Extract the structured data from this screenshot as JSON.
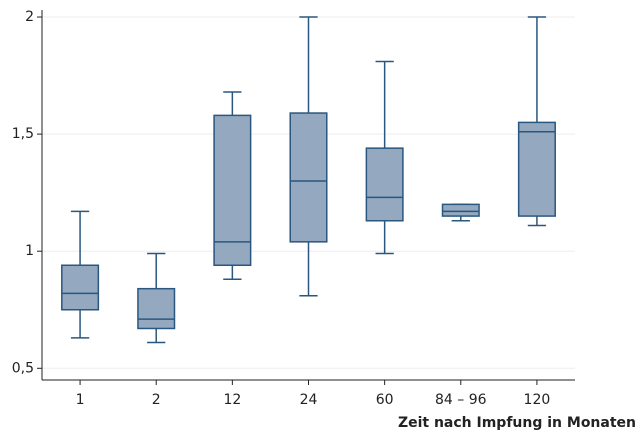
{
  "chart_data": {
    "type": "box",
    "x_label": "Zeit nach Impfung in Monaten",
    "categories": [
      "1",
      "2",
      "12",
      "24",
      "60",
      "84 – 96",
      "120"
    ],
    "min": [
      0.63,
      0.61,
      0.88,
      0.81,
      0.99,
      1.13,
      1.11
    ],
    "q1": [
      0.75,
      0.67,
      0.94,
      1.04,
      1.13,
      1.15,
      1.15
    ],
    "median": [
      0.82,
      0.71,
      1.04,
      1.3,
      1.23,
      1.17,
      1.51
    ],
    "q3": [
      0.94,
      0.84,
      1.58,
      1.59,
      1.44,
      1.2,
      1.55
    ],
    "max": [
      1.17,
      0.99,
      1.68,
      2.0,
      1.81,
      1.2,
      2.0
    ],
    "color": "#94a9c0",
    "edge_color": "#2a577f",
    "ylim": [
      0.45,
      2.03
    ],
    "yticks": [
      {
        "value": 0.5,
        "label": "0,5"
      },
      1,
      {
        "value": 1.5,
        "label": "1,5"
      },
      2
    ],
    "grid": true
  }
}
